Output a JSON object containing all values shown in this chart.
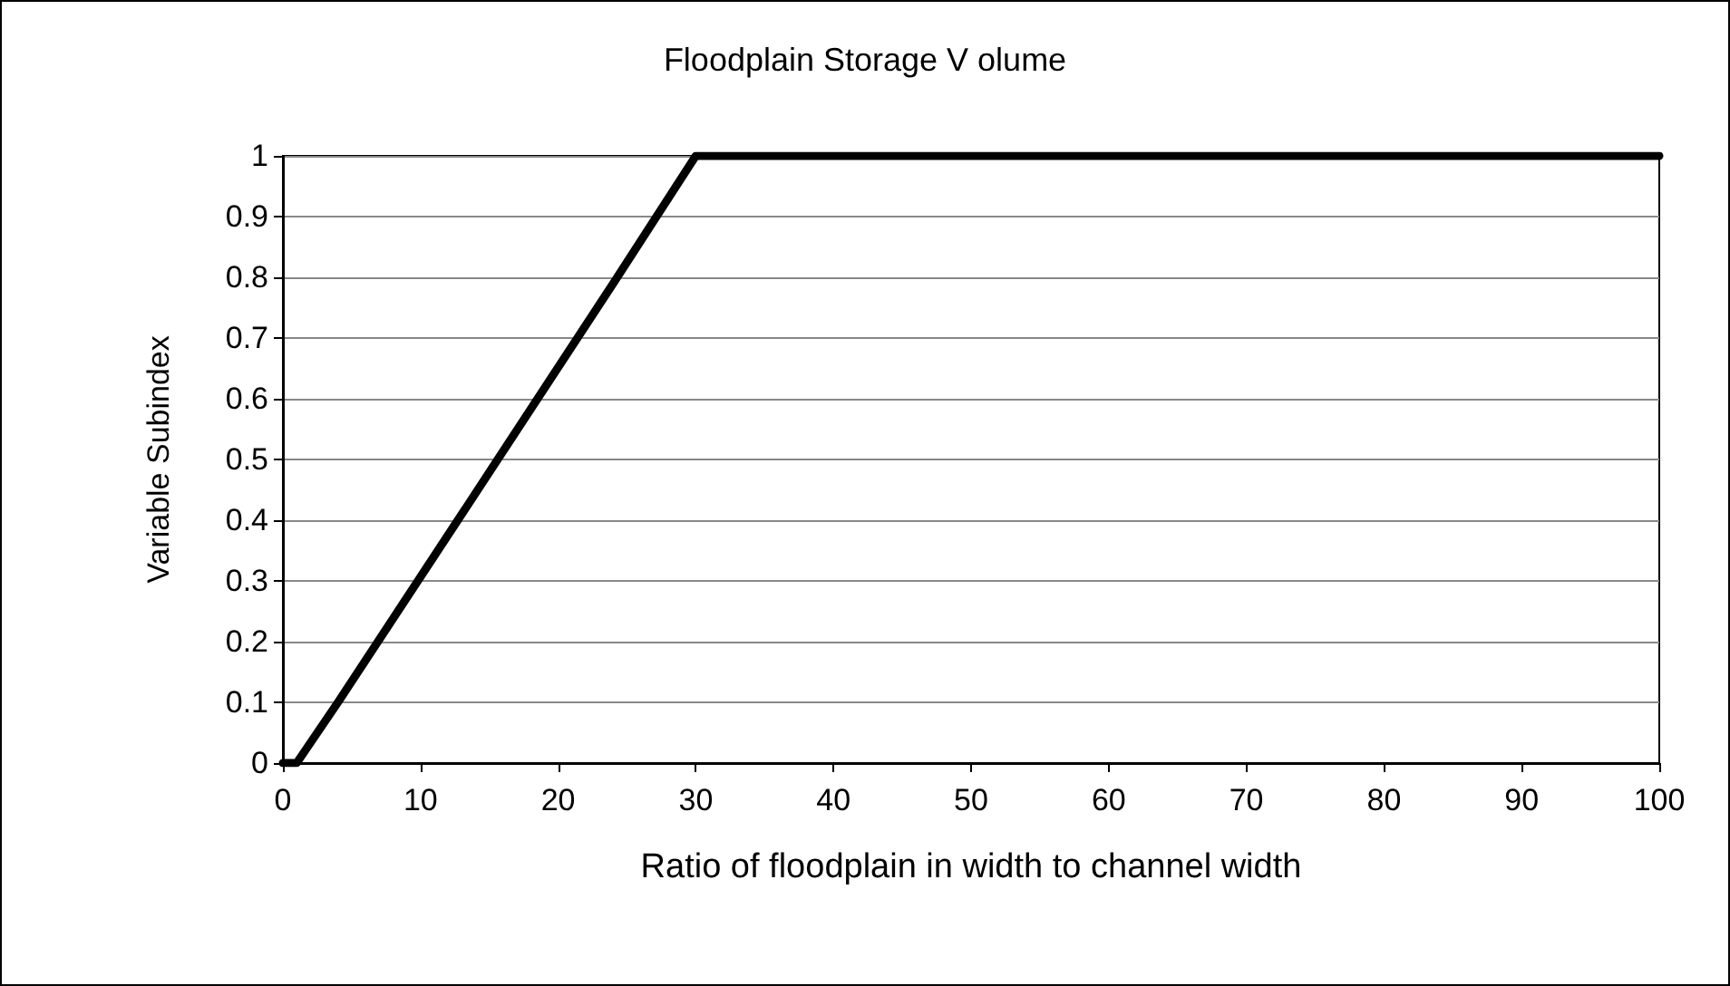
{
  "chart_data": {
    "type": "line",
    "title": "Floodplain Storage V olume",
    "xlabel": "Ratio of floodplain in width to channel width",
    "ylabel": "Variable Subindex",
    "x": [
      0,
      1,
      4,
      13,
      24,
      30,
      100
    ],
    "series": [
      {
        "color": "#000000",
        "values": [
          0,
          0,
          0.1,
          0.41,
          0.79,
          1,
          1
        ]
      }
    ],
    "xlim": [
      0,
      100
    ],
    "xticks": [
      0,
      10,
      20,
      30,
      40,
      50,
      60,
      70,
      80,
      90,
      100
    ],
    "ylim": [
      0,
      1
    ],
    "yticks": [
      0,
      0.1,
      0.2,
      0.3,
      0.4,
      0.5,
      0.6,
      0.7,
      0.8,
      0.9,
      1
    ],
    "grid": "y",
    "marker": "none",
    "line_style": "solid"
  }
}
